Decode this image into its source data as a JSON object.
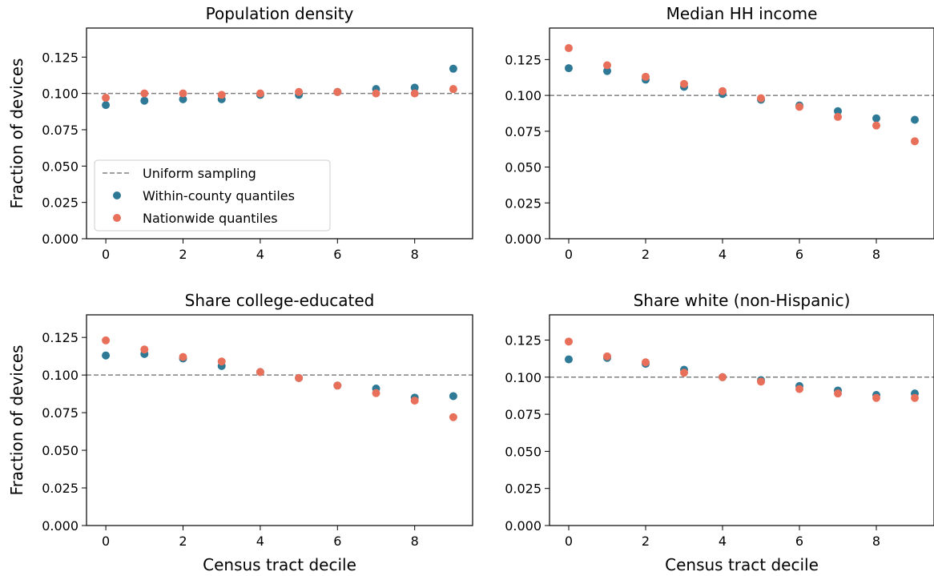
{
  "figure": {
    "ylabel": "Fraction of devices",
    "xlabel": "Census tract decile",
    "legend": {
      "entries": [
        "Uniform sampling",
        "Within-county quantiles",
        "Nationwide quantiles"
      ],
      "location": "lower-left of first panel"
    }
  },
  "colors": {
    "within_county": "#2e7a96",
    "nationwide": "#e8705a",
    "reference_line": "#808080"
  },
  "chart_data": [
    {
      "type": "scatter",
      "title": "Population density",
      "xlabel": "",
      "ylabel": "Fraction of devices",
      "x": [
        0,
        1,
        2,
        3,
        4,
        5,
        6,
        7,
        8,
        9
      ],
      "series": [
        {
          "name": "Within-county quantiles",
          "values": [
            0.092,
            0.095,
            0.096,
            0.096,
            0.099,
            0.099,
            0.101,
            0.103,
            0.104,
            0.117
          ]
        },
        {
          "name": "Nationwide quantiles",
          "values": [
            0.097,
            0.1,
            0.1,
            0.099,
            0.1,
            0.101,
            0.101,
            0.1,
            0.1,
            0.103
          ]
        }
      ],
      "reference_line": {
        "name": "Uniform sampling",
        "y": 0.1
      },
      "xticks": [
        0,
        2,
        4,
        6,
        8
      ],
      "yticks": [
        "0.000",
        "0.025",
        "0.050",
        "0.075",
        "0.100",
        "0.125"
      ],
      "xlim": [
        -0.5,
        9.5
      ],
      "ylim": [
        0,
        0.145
      ],
      "grid": false,
      "legend": true
    },
    {
      "type": "scatter",
      "title": "Median HH income",
      "xlabel": "",
      "ylabel": "",
      "x": [
        0,
        1,
        2,
        3,
        4,
        5,
        6,
        7,
        8,
        9
      ],
      "series": [
        {
          "name": "Within-county quantiles",
          "values": [
            0.119,
            0.117,
            0.111,
            0.106,
            0.101,
            0.097,
            0.093,
            0.089,
            0.084,
            0.083
          ]
        },
        {
          "name": "Nationwide quantiles",
          "values": [
            0.133,
            0.121,
            0.113,
            0.108,
            0.103,
            0.098,
            0.092,
            0.085,
            0.079,
            0.068
          ]
        }
      ],
      "reference_line": {
        "name": "Uniform sampling",
        "y": 0.1
      },
      "xticks": [
        0,
        2,
        4,
        6,
        8
      ],
      "yticks": [
        "0.000",
        "0.025",
        "0.050",
        "0.075",
        "0.100",
        "0.125"
      ],
      "xlim": [
        -0.5,
        9.5
      ],
      "ylim": [
        0,
        0.147
      ],
      "grid": false,
      "legend": false
    },
    {
      "type": "scatter",
      "title": "Share college-educated",
      "xlabel": "Census tract decile",
      "ylabel": "Fraction of devices",
      "x": [
        0,
        1,
        2,
        3,
        4,
        5,
        6,
        7,
        8,
        9
      ],
      "series": [
        {
          "name": "Within-county quantiles",
          "values": [
            0.113,
            0.114,
            0.111,
            0.106,
            0.102,
            0.098,
            0.093,
            0.091,
            0.085,
            0.086
          ]
        },
        {
          "name": "Nationwide quantiles",
          "values": [
            0.123,
            0.117,
            0.112,
            0.109,
            0.102,
            0.098,
            0.093,
            0.088,
            0.083,
            0.072
          ]
        }
      ],
      "reference_line": {
        "name": "Uniform sampling",
        "y": 0.1
      },
      "xticks": [
        0,
        2,
        4,
        6,
        8
      ],
      "yticks": [
        "0.000",
        "0.025",
        "0.050",
        "0.075",
        "0.100",
        "0.125"
      ],
      "xlim": [
        -0.5,
        9.5
      ],
      "ylim": [
        0,
        0.14
      ],
      "grid": false,
      "legend": false
    },
    {
      "type": "scatter",
      "title": "Share white (non-Hispanic)",
      "xlabel": "Census tract decile",
      "ylabel": "",
      "x": [
        0,
        1,
        2,
        3,
        4,
        5,
        6,
        7,
        8,
        9
      ],
      "series": [
        {
          "name": "Within-county quantiles",
          "values": [
            0.112,
            0.113,
            0.109,
            0.105,
            0.1,
            0.098,
            0.094,
            0.091,
            0.088,
            0.089
          ]
        },
        {
          "name": "Nationwide quantiles",
          "values": [
            0.124,
            0.114,
            0.11,
            0.103,
            0.1,
            0.097,
            0.092,
            0.089,
            0.086,
            0.086
          ]
        }
      ],
      "reference_line": {
        "name": "Uniform sampling",
        "y": 0.1
      },
      "xticks": [
        0,
        2,
        4,
        6,
        8
      ],
      "yticks": [
        "0.000",
        "0.025",
        "0.050",
        "0.075",
        "0.100",
        "0.125"
      ],
      "xlim": [
        -0.5,
        9.5
      ],
      "ylim": [
        0,
        0.142
      ],
      "grid": false,
      "legend": false
    }
  ]
}
